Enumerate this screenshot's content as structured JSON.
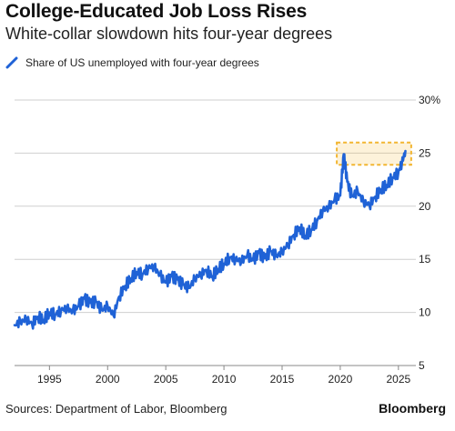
{
  "header": {
    "title": "College-Educated Job Loss Rises",
    "subtitle": "White-collar slowdown hits four-year degrees"
  },
  "footer": {
    "source": "Sources: Department of Labor, Bloomberg",
    "brand": "Bloomberg"
  },
  "colors": {
    "series": "#1f62d6",
    "highlight": "#f2b632",
    "grid": "#cfcfcf"
  },
  "chart_data": {
    "type": "line",
    "title": "College-Educated Job Loss Rises",
    "subtitle": "White-collar slowdown hits four-year degrees",
    "xlabel": "",
    "ylabel": "",
    "x_ticks": [
      1995,
      2000,
      2005,
      2010,
      2015,
      2020,
      2025
    ],
    "y_ticks": [
      "5",
      "10",
      "15",
      "20",
      "25",
      "30%"
    ],
    "y_tick_values": [
      5,
      10,
      15,
      20,
      25,
      30
    ],
    "xlim": [
      1992,
      2026.5
    ],
    "ylim": [
      5,
      30
    ],
    "grid": true,
    "y_axis_side": "right",
    "legend_position": "top-left",
    "series": [
      {
        "name": "Share of US unemployed with four-year degrees",
        "x": [
          1992.0,
          1992.5,
          1993.0,
          1993.5,
          1994.0,
          1994.5,
          1995.0,
          1995.5,
          1996.0,
          1996.5,
          1997.0,
          1997.5,
          1998.0,
          1998.5,
          1999.0,
          1999.5,
          2000.0,
          2000.5,
          2001.0,
          2001.5,
          2002.0,
          2002.5,
          2003.0,
          2003.5,
          2004.0,
          2004.5,
          2005.0,
          2005.5,
          2006.0,
          2006.5,
          2007.0,
          2007.5,
          2008.0,
          2008.5,
          2009.0,
          2009.5,
          2010.0,
          2010.5,
          2011.0,
          2011.5,
          2012.0,
          2012.5,
          2013.0,
          2013.5,
          2014.0,
          2014.5,
          2015.0,
          2015.5,
          2016.0,
          2016.5,
          2017.0,
          2017.5,
          2018.0,
          2018.5,
          2019.0,
          2019.5,
          2020.0,
          2020.3,
          2020.6,
          2021.0,
          2021.5,
          2022.0,
          2022.5,
          2023.0,
          2023.5,
          2024.0,
          2024.5,
          2025.0,
          2025.3,
          2025.6
        ],
        "values": [
          8.8,
          9.1,
          9.4,
          8.9,
          9.6,
          9.3,
          10.0,
          9.8,
          10.2,
          10.4,
          10.1,
          10.6,
          11.3,
          10.9,
          11.0,
          10.2,
          10.6,
          9.7,
          11.5,
          12.5,
          13.2,
          13.8,
          13.6,
          14.2,
          14.3,
          13.5,
          12.8,
          13.4,
          13.1,
          12.6,
          12.3,
          13.2,
          13.6,
          14.0,
          13.4,
          14.1,
          14.6,
          15.2,
          15.0,
          14.8,
          15.4,
          14.9,
          15.6,
          15.1,
          15.8,
          15.3,
          15.7,
          16.4,
          17.3,
          18.0,
          17.2,
          17.8,
          18.6,
          19.6,
          19.9,
          20.6,
          21.0,
          24.9,
          22.3,
          20.9,
          21.4,
          20.4,
          20.1,
          20.9,
          21.6,
          22.0,
          22.7,
          23.2,
          24.1,
          25.2
        ]
      }
    ],
    "annotations": [
      {
        "type": "highlight-box",
        "x_range": [
          2019.7,
          2026.1
        ],
        "y_range": [
          23.9,
          26.0
        ]
      }
    ]
  }
}
